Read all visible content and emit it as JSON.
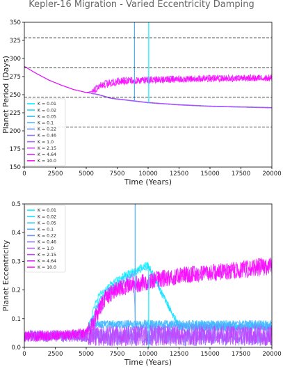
{
  "figure": {
    "title": "Kepler-16 Migration - Varied Eccentricity Damping"
  },
  "legend_labels": [
    "K = 0.01",
    "K = 0.02",
    "K = 0.05",
    "K = 0.1",
    "K = 0.22",
    "K = 0.46",
    "K = 1.0",
    "K = 2.15",
    "K = 4.64",
    "K = 10.0"
  ],
  "colors": [
    "#00f0ff",
    "#18dcff",
    "#30c8ff",
    "#48b0ff",
    "#6a96ff",
    "#8a78ff",
    "#a85cff",
    "#c640ff",
    "#e024ff",
    "#ff00ff"
  ],
  "chart_data": [
    {
      "type": "line",
      "xlabel": "Time (Years)",
      "ylabel": "Planet Period (Days)",
      "xlim": [
        0,
        20000
      ],
      "ylim": [
        150,
        350
      ],
      "xticks": [
        0,
        2500,
        5000,
        7500,
        10000,
        12500,
        15000,
        17500,
        20000
      ],
      "yticks": [
        150,
        175,
        200,
        225,
        250,
        275,
        300,
        325,
        350
      ],
      "grid": false,
      "legend_position": "lower-left",
      "reference_lines_y": [
        328.3,
        287.0,
        246.5,
        205.2
      ],
      "series": [
        {
          "name": "K = 0.01",
          "x": [
            0,
            1000,
            2000,
            3000,
            4000,
            5000,
            6000,
            7000,
            8000,
            9000,
            10000,
            12500,
            15000,
            17500,
            20000
          ],
          "y": [
            289,
            279,
            270,
            263,
            257,
            253,
            250,
            245,
            243,
            241,
            239,
            236,
            234,
            233,
            232
          ]
        },
        {
          "name": "K = 0.02",
          "x": [
            0,
            1000,
            2000,
            3000,
            4000,
            5000,
            6000,
            7000,
            8000,
            9000,
            10000,
            12500,
            15000,
            17500,
            20000
          ],
          "y": [
            289,
            279,
            270,
            263,
            257,
            253,
            250,
            245,
            243,
            241,
            239,
            236,
            234,
            233,
            232
          ]
        },
        {
          "name": "K = 0.05",
          "x": [
            0,
            1000,
            2000,
            3000,
            4000,
            5000,
            6000,
            7000,
            8000,
            9000,
            10000,
            12500,
            15000,
            17500,
            20000
          ],
          "y": [
            289,
            279,
            270,
            263,
            257,
            253,
            250,
            245,
            243,
            241,
            239,
            236,
            234,
            233,
            232
          ]
        },
        {
          "name": "K = 0.1",
          "x": [
            0,
            1000,
            2000,
            3000,
            4000,
            5000,
            6000,
            7000,
            8000,
            9000,
            10000,
            12500,
            15000,
            17500,
            20000
          ],
          "y": [
            289,
            279,
            270,
            263,
            257,
            253,
            250,
            245,
            243,
            241,
            239,
            236,
            234,
            233,
            232
          ]
        },
        {
          "name": "K = 0.22",
          "x": [
            0,
            1000,
            2000,
            3000,
            4000,
            5000,
            6000,
            7000,
            8000,
            9000,
            10000,
            12500,
            15000,
            17500,
            20000
          ],
          "y": [
            289,
            279,
            270,
            263,
            257,
            253,
            250,
            245,
            243,
            241,
            239,
            236,
            234,
            233,
            232
          ]
        },
        {
          "name": "K = 0.46",
          "x": [
            0,
            1000,
            2000,
            3000,
            4000,
            5000,
            6000,
            7000,
            8000,
            9000,
            10000,
            12500,
            15000,
            17500,
            20000
          ],
          "y": [
            289,
            279,
            270,
            263,
            257,
            253,
            250,
            245,
            243,
            241,
            239,
            236,
            234,
            233,
            232
          ]
        },
        {
          "name": "K = 1.0",
          "x": [
            0,
            1000,
            2000,
            3000,
            4000,
            5000,
            6000,
            7000,
            8000,
            9000,
            10000,
            12500,
            15000,
            17500,
            20000
          ],
          "y": [
            289,
            279,
            270,
            263,
            257,
            253,
            250,
            245,
            243,
            241,
            239,
            236,
            234,
            233,
            232
          ]
        },
        {
          "name": "K = 2.15",
          "x": [
            0,
            1000,
            2000,
            3000,
            4000,
            5000,
            6000,
            7000,
            8000,
            9000,
            10000,
            12500,
            15000,
            17500,
            20000
          ],
          "y": [
            289,
            279,
            270,
            263,
            257,
            253,
            250,
            245,
            243,
            241,
            239,
            236,
            234,
            233,
            232
          ]
        },
        {
          "name": "K = 4.64",
          "x": [
            0,
            1000,
            2000,
            3000,
            4000,
            5000,
            5500,
            6000,
            7000,
            8000,
            10000,
            12500,
            15000,
            17500,
            20000
          ],
          "y": [
            289,
            279,
            270,
            263,
            257,
            253,
            255,
            262,
            268,
            270,
            271,
            272,
            273,
            273,
            274
          ]
        },
        {
          "name": "K = 10.0",
          "x": [
            0,
            1000,
            2000,
            3000,
            4000,
            5000,
            5500,
            6000,
            7000,
            8000,
            10000,
            12500,
            15000,
            17500,
            20000
          ],
          "y": [
            289,
            279,
            270,
            263,
            257,
            253,
            254,
            260,
            266,
            268,
            270,
            271,
            272,
            272,
            273
          ]
        }
      ]
    },
    {
      "type": "line",
      "xlabel": "Time (Years)",
      "ylabel": "Planet Eccentricity",
      "xlim": [
        0,
        20000
      ],
      "ylim": [
        0.0,
        0.5
      ],
      "xticks": [
        0,
        2500,
        5000,
        7500,
        10000,
        12500,
        15000,
        17500,
        20000
      ],
      "yticks": [
        0.0,
        0.1,
        0.2,
        0.3,
        0.4,
        0.5
      ],
      "grid": false,
      "legend_position": "top-left",
      "series": [
        {
          "name": "K = 0.01",
          "x": [
            0,
            2500,
            5000,
            5500,
            6000,
            7000,
            8000,
            9000,
            10000,
            12500,
            15000,
            17500,
            20000
          ],
          "y": [
            0.04,
            0.04,
            0.05,
            0.12,
            0.18,
            0.22,
            0.25,
            0.27,
            0.29,
            0.07,
            0.07,
            0.07,
            0.07
          ]
        },
        {
          "name": "K = 0.02",
          "x": [
            0,
            2500,
            5000,
            5500,
            6000,
            7000,
            8000,
            9000,
            10000,
            12500,
            15000,
            17500,
            20000
          ],
          "y": [
            0.04,
            0.04,
            0.05,
            0.1,
            0.16,
            0.21,
            0.24,
            0.26,
            0.28,
            0.07,
            0.07,
            0.07,
            0.07
          ]
        },
        {
          "name": "K = 0.05",
          "x": [
            0,
            2500,
            5000,
            5500,
            6000,
            7000,
            8000,
            9000,
            12500,
            15000,
            17500,
            20000
          ],
          "y": [
            0.04,
            0.04,
            0.05,
            0.09,
            0.08,
            0.08,
            0.08,
            0.08,
            0.08,
            0.08,
            0.08,
            0.08
          ]
        },
        {
          "name": "K = 0.1",
          "x": [
            0,
            2500,
            5000,
            5500,
            6000,
            7000,
            8000,
            9000,
            12500,
            15000,
            17500,
            20000
          ],
          "y": [
            0.04,
            0.04,
            0.05,
            0.08,
            0.08,
            0.08,
            0.08,
            0.08,
            0.08,
            0.08,
            0.08,
            0.08
          ]
        },
        {
          "name": "K = 0.22",
          "x": [
            0,
            2500,
            5000,
            5500,
            6000,
            7000,
            8000,
            8800,
            9000,
            12500,
            15000,
            17500,
            20000
          ],
          "y": [
            0.04,
            0.04,
            0.05,
            0.1,
            0.15,
            0.2,
            0.23,
            0.25,
            0.07,
            0.07,
            0.07,
            0.07,
            0.07
          ]
        },
        {
          "name": "K = 0.46",
          "x": [
            0,
            2500,
            5000,
            6000,
            10000,
            15000,
            20000
          ],
          "y": [
            0.04,
            0.04,
            0.04,
            0.04,
            0.04,
            0.04,
            0.04
          ]
        },
        {
          "name": "K = 1.0",
          "x": [
            0,
            2500,
            5000,
            6000,
            10000,
            15000,
            20000
          ],
          "y": [
            0.04,
            0.04,
            0.04,
            0.04,
            0.04,
            0.04,
            0.04
          ]
        },
        {
          "name": "K = 2.15",
          "x": [
            0,
            2500,
            5000,
            6000,
            10000,
            15000,
            20000
          ],
          "y": [
            0.04,
            0.04,
            0.04,
            0.04,
            0.04,
            0.04,
            0.04
          ]
        },
        {
          "name": "K = 4.64",
          "x": [
            0,
            2500,
            5000,
            5500,
            6000,
            6500,
            7000,
            8000,
            10000,
            12500,
            15000,
            17500,
            20000
          ],
          "y": [
            0.04,
            0.04,
            0.05,
            0.08,
            0.13,
            0.17,
            0.19,
            0.21,
            0.23,
            0.25,
            0.26,
            0.27,
            0.28
          ]
        },
        {
          "name": "K = 10.0",
          "x": [
            0,
            2500,
            5000,
            5500,
            6000,
            6500,
            7000,
            8000,
            10000,
            12500,
            15000,
            17500,
            20000
          ],
          "y": [
            0.04,
            0.04,
            0.05,
            0.08,
            0.13,
            0.17,
            0.19,
            0.21,
            0.23,
            0.25,
            0.26,
            0.27,
            0.29
          ]
        }
      ]
    }
  ]
}
